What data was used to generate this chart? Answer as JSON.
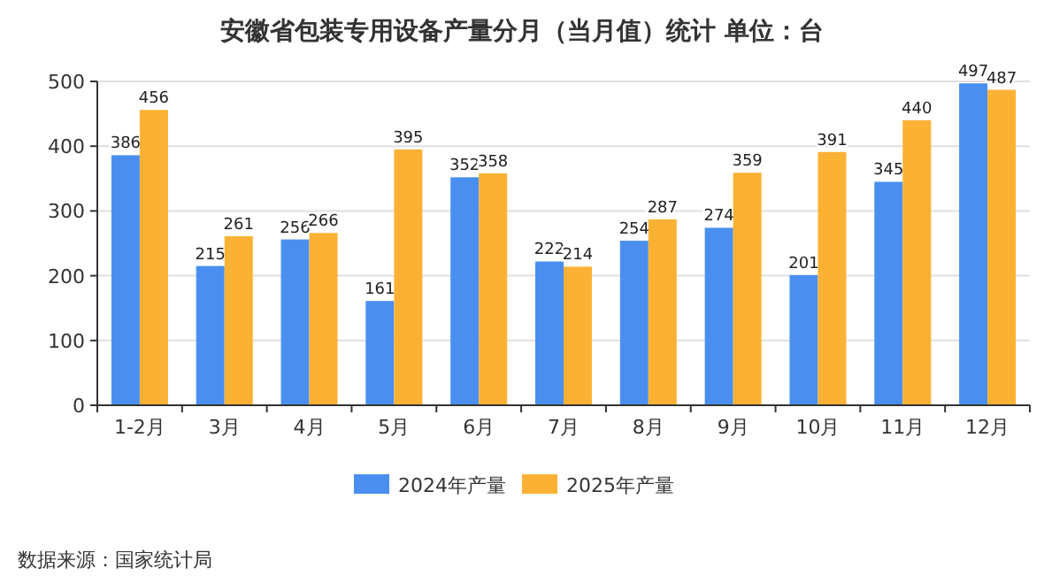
{
  "chart_data": {
    "type": "bar",
    "title": "安徽省包装专用设备产量分月（当月值）统计  单位：台",
    "categories": [
      "1-2月",
      "3月",
      "4月",
      "5月",
      "6月",
      "7月",
      "8月",
      "9月",
      "10月",
      "11月",
      "12月"
    ],
    "series": [
      {
        "name": "2024年产量",
        "color": "#4a8ff0",
        "values": [
          386,
          215,
          256,
          161,
          352,
          222,
          254,
          274,
          201,
          345,
          497
        ]
      },
      {
        "name": "2025年产量",
        "color": "#fbb234",
        "values": [
          456,
          261,
          266,
          395,
          358,
          214,
          287,
          359,
          391,
          440,
          487
        ]
      }
    ],
    "ylim": [
      0,
      500
    ],
    "yticks": [
      0,
      100,
      200,
      300,
      400,
      500
    ],
    "grid": "y",
    "legend": "bottom",
    "data_labels": true,
    "annotations": [
      "数据来源：国家统计局"
    ]
  }
}
